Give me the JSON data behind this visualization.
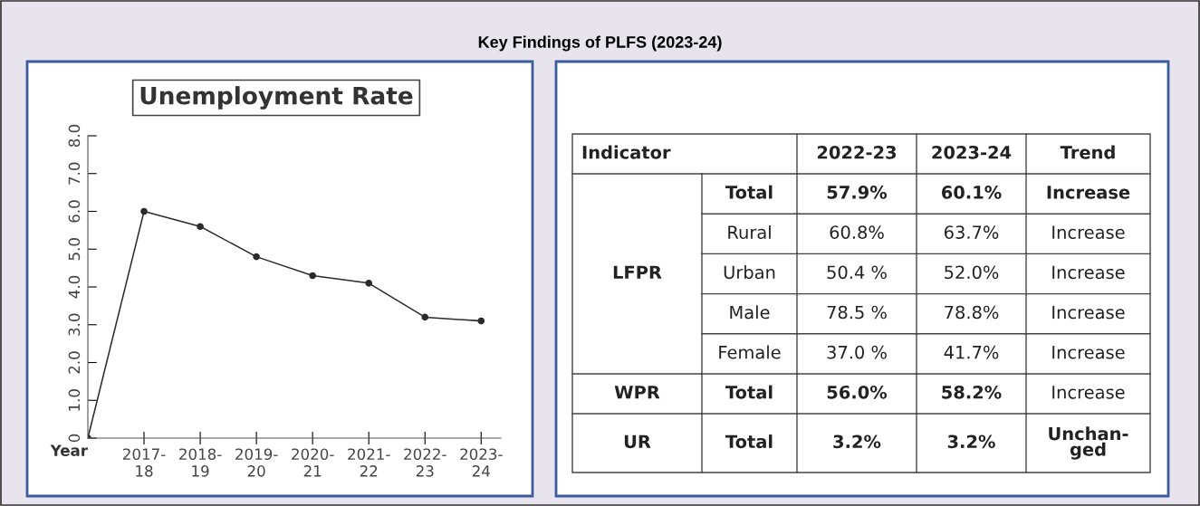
{
  "chart_data": [
    {
      "type": "line",
      "title": "Key Findings of PLFS (2023-24)",
      "subtitle": "Unemployment Rate",
      "xlabel": "Year",
      "categories": [
        null,
        "2017-\n18",
        "2018-\n19",
        "2019-\n20",
        "2020-\n21",
        "2021-\n22",
        "2022-\n23",
        "2023-\n24"
      ],
      "series": [
        {
          "color": "#2b2b2b",
          "values": [
            0,
            6.0,
            5.6,
            4.8,
            4.3,
            4.1,
            3.2,
            3.1
          ]
        }
      ],
      "ylim": [
        0,
        8
      ],
      "yticks": [
        0,
        {
          "value": 1,
          "label": "1.0"
        },
        {
          "value": 2,
          "label": "2.0"
        },
        {
          "value": 3,
          "label": "3.0"
        },
        {
          "value": 4,
          "label": "4.0"
        },
        {
          "value": 5,
          "label": "5.0"
        },
        {
          "value": 6,
          "label": "6.0"
        },
        {
          "value": 7,
          "label": "7.0"
        },
        {
          "value": 8,
          "label": "8.0"
        }
      ],
      "marker": "circle",
      "grid": false,
      "legend": false
    },
    {
      "type": "other",
      "cell_labels": [
        [
          "Indicator",
          null,
          "2022-23",
          "2023-24",
          "Trend"
        ],
        [
          "LFPR",
          "Total",
          "57.9%",
          "60.1%",
          "Increase"
        ],
        [
          null,
          "Rural",
          "60.8%",
          "63.7%",
          "Increase"
        ],
        [
          null,
          "Urban",
          "50.4 %",
          "52.0%",
          "Increase"
        ],
        [
          null,
          "Male",
          "78.5 %",
          "78.8%",
          "Increase"
        ],
        [
          null,
          "Female",
          "37.0 %",
          "41.7%",
          "Increase"
        ],
        [
          "WPR",
          "Total",
          "56.0%",
          "58.2%",
          "Increase"
        ],
        [
          "UR",
          "Total",
          "3.2%",
          "3.2%",
          "Unchan-\nged"
        ]
      ]
    }
  ]
}
